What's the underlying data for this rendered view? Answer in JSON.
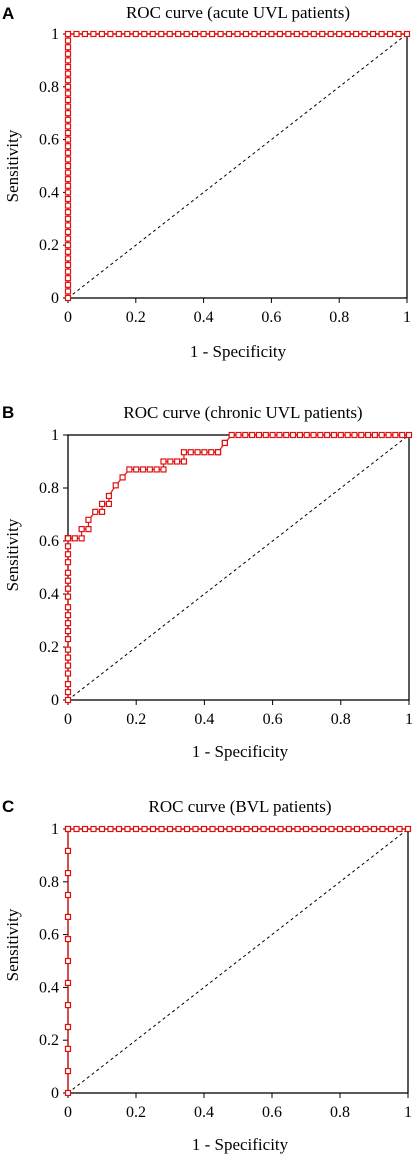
{
  "chart_data": [
    {
      "type": "line",
      "panel": "A",
      "title": "ROC curve (acute UVL patients)",
      "xlabel": "1 - Specificity",
      "ylabel": "Sensitivity",
      "xlim": [
        0,
        1
      ],
      "ylim": [
        0,
        1
      ],
      "xticks": [
        "0",
        "0.2",
        "0.4",
        "0.6",
        "0.8",
        "1"
      ],
      "yticks": [
        "0",
        "0.2",
        "0.4",
        "0.6",
        "0.8",
        "1"
      ],
      "grid": false,
      "reference_line": [
        [
          0,
          0
        ],
        [
          1,
          1
        ]
      ],
      "series": [
        {
          "color": "#e01010",
          "x": [
            0,
            0,
            0,
            0,
            0,
            0,
            0,
            0,
            0,
            0,
            0,
            0,
            0,
            0,
            0,
            0,
            0,
            0,
            0,
            0,
            0,
            0,
            0,
            0,
            0,
            0,
            0,
            0,
            0,
            0,
            0,
            0,
            0,
            0,
            0,
            0,
            0,
            0,
            0,
            0,
            0,
            0.025,
            0.05,
            0.075,
            0.1,
            0.125,
            0.15,
            0.175,
            0.2,
            0.225,
            0.25,
            0.275,
            0.3,
            0.325,
            0.35,
            0.375,
            0.4,
            0.425,
            0.45,
            0.475,
            0.5,
            0.525,
            0.55,
            0.575,
            0.6,
            0.625,
            0.65,
            0.675,
            0.7,
            0.725,
            0.75,
            0.775,
            0.8,
            0.825,
            0.85,
            0.875,
            0.9,
            0.925,
            0.95,
            0.975,
            1
          ],
          "y": [
            0,
            0.025,
            0.05,
            0.075,
            0.1,
            0.125,
            0.15,
            0.175,
            0.2,
            0.225,
            0.25,
            0.275,
            0.3,
            0.325,
            0.35,
            0.375,
            0.4,
            0.425,
            0.45,
            0.475,
            0.5,
            0.525,
            0.55,
            0.575,
            0.6,
            0.625,
            0.65,
            0.675,
            0.7,
            0.725,
            0.75,
            0.775,
            0.8,
            0.825,
            0.85,
            0.875,
            0.9,
            0.925,
            0.95,
            0.975,
            1,
            1,
            1,
            1,
            1,
            1,
            1,
            1,
            1,
            1,
            1,
            1,
            1,
            1,
            1,
            1,
            1,
            1,
            1,
            1,
            1,
            1,
            1,
            1,
            1,
            1,
            1,
            1,
            1,
            1,
            1,
            1,
            1,
            1,
            1,
            1,
            1,
            1,
            1,
            1,
            1
          ]
        }
      ]
    },
    {
      "type": "line",
      "panel": "B",
      "title": "ROC curve (chronic UVL patients)",
      "xlabel": "1 - Specificity",
      "ylabel": "Sensitivity",
      "xlim": [
        0,
        1
      ],
      "ylim": [
        0,
        1
      ],
      "xticks": [
        "0",
        "0.2",
        "0.4",
        "0.6",
        "0.8",
        "1"
      ],
      "yticks": [
        "0",
        "0.2",
        "0.4",
        "0.6",
        "0.8",
        "1"
      ],
      "grid": false,
      "reference_line": [
        [
          0,
          0
        ],
        [
          1,
          1
        ]
      ],
      "series": [
        {
          "color": "#e01010",
          "x": [
            0,
            0,
            0,
            0,
            0,
            0,
            0,
            0,
            0,
            0,
            0,
            0,
            0,
            0,
            0,
            0,
            0,
            0,
            0,
            0,
            0,
            0,
            0,
            0,
            0.02,
            0.04,
            0.04,
            0.06,
            0.06,
            0.08,
            0.1,
            0.1,
            0.12,
            0.12,
            0.14,
            0.16,
            0.18,
            0.2,
            0.22,
            0.24,
            0.26,
            0.28,
            0.28,
            0.3,
            0.32,
            0.34,
            0.34,
            0.36,
            0.38,
            0.4,
            0.42,
            0.44,
            0.44,
            0.46,
            0.46,
            0.48,
            0.5,
            0.52,
            0.54,
            0.56,
            0.58,
            0.6,
            0.62,
            0.64,
            0.66,
            0.68,
            0.7,
            0.72,
            0.74,
            0.76,
            0.78,
            0.8,
            0.82,
            0.84,
            0.86,
            0.88,
            0.9,
            0.92,
            0.94,
            0.96,
            0.98,
            1
          ],
          "y": [
            0,
            0.03,
            0.06,
            0.1,
            0.13,
            0.16,
            0.19,
            0.23,
            0.26,
            0.29,
            0.32,
            0.35,
            0.39,
            0.42,
            0.45,
            0.48,
            0.52,
            0.55,
            0.58,
            0.61,
            0.61,
            0.61,
            0.61,
            0.61,
            0.61,
            0.61,
            0.645,
            0.645,
            0.68,
            0.71,
            0.71,
            0.74,
            0.74,
            0.77,
            0.81,
            0.84,
            0.87,
            0.87,
            0.87,
            0.87,
            0.87,
            0.87,
            0.9,
            0.9,
            0.9,
            0.9,
            0.935,
            0.935,
            0.935,
            0.935,
            0.935,
            0.935,
            0.935,
            0.97,
            0.97,
            1,
            1,
            1,
            1,
            1,
            1,
            1,
            1,
            1,
            1,
            1,
            1,
            1,
            1,
            1,
            1,
            1,
            1,
            1,
            1,
            1,
            1,
            1,
            1,
            1,
            1,
            1
          ]
        }
      ]
    },
    {
      "type": "line",
      "panel": "C",
      "title": "ROC curve (BVL patients)",
      "xlabel": "1 - Specificity",
      "ylabel": "Sensitivity",
      "xlim": [
        0,
        1
      ],
      "ylim": [
        0,
        1
      ],
      "xticks": [
        "0",
        "0.2",
        "0.4",
        "0.6",
        "0.8",
        "1"
      ],
      "yticks": [
        "0",
        "0.2",
        "0.4",
        "0.6",
        "0.8",
        "1"
      ],
      "grid": false,
      "reference_line": [
        [
          0,
          0
        ],
        [
          1,
          1
        ]
      ],
      "series": [
        {
          "color": "#e01010",
          "x": [
            0,
            0,
            0,
            0,
            0,
            0,
            0,
            0,
            0,
            0,
            0,
            0,
            0,
            0,
            0.025,
            0.05,
            0.075,
            0.1,
            0.125,
            0.15,
            0.175,
            0.2,
            0.225,
            0.25,
            0.275,
            0.3,
            0.325,
            0.35,
            0.375,
            0.4,
            0.425,
            0.45,
            0.475,
            0.5,
            0.525,
            0.55,
            0.575,
            0.6,
            0.625,
            0.65,
            0.675,
            0.7,
            0.725,
            0.75,
            0.775,
            0.8,
            0.825,
            0.85,
            0.875,
            0.9,
            0.925,
            0.95,
            0.975,
            1
          ],
          "y": [
            0,
            0.083,
            0.167,
            0.25,
            0.333,
            0.417,
            0.5,
            0.583,
            0.667,
            0.75,
            0.833,
            0.917,
            1,
            1,
            1,
            1,
            1,
            1,
            1,
            1,
            1,
            1,
            1,
            1,
            1,
            1,
            1,
            1,
            1,
            1,
            1,
            1,
            1,
            1,
            1,
            1,
            1,
            1,
            1,
            1,
            1,
            1,
            1,
            1,
            1,
            1,
            1,
            1,
            1,
            1,
            1,
            1,
            1,
            1
          ]
        }
      ]
    }
  ]
}
